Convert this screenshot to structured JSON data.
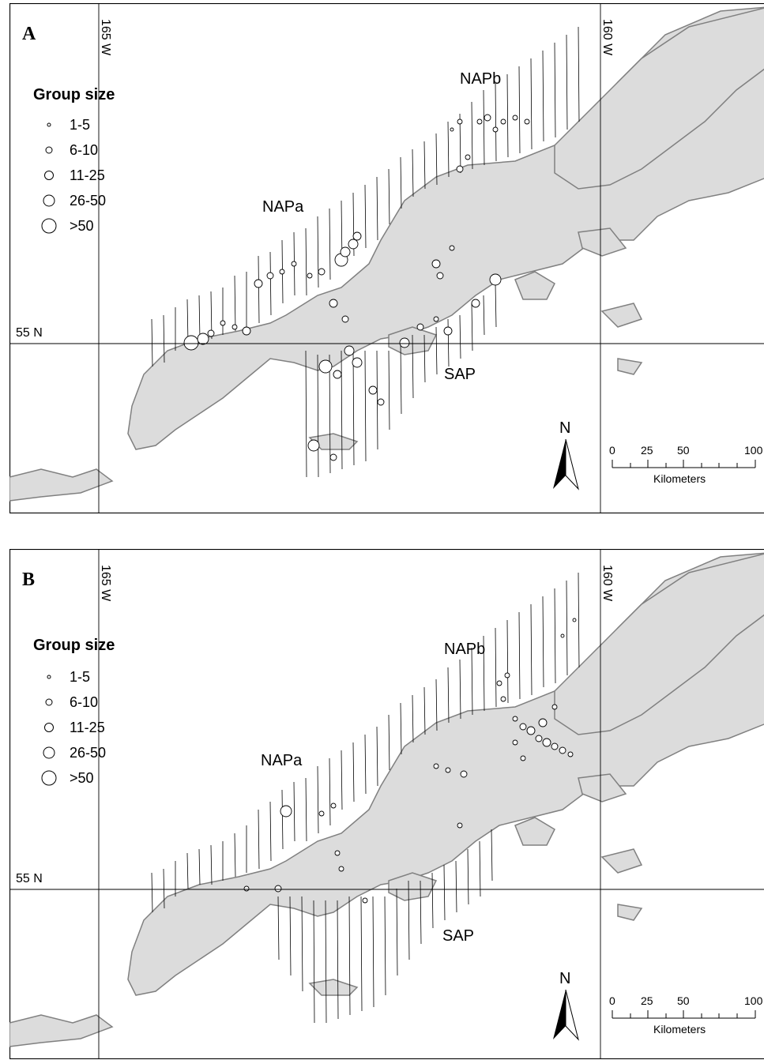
{
  "figure": {
    "panels": [
      {
        "id": "A",
        "letter": "A",
        "legend": {
          "title": "Group size",
          "classes": [
            "1-5",
            "6-10",
            "11-25",
            "26-50",
            ">50"
          ]
        },
        "graticule": {
          "lon_west": "165 W",
          "lon_east": "160 W",
          "lat": "55 N"
        },
        "regions": [
          "NAPa",
          "NAPb",
          "SAP"
        ],
        "north_arrow": "N",
        "scale_bar": {
          "ticks": [
            "0",
            "25",
            "50",
            "100"
          ],
          "unit": "Kilometers"
        }
      },
      {
        "id": "B",
        "letter": "B",
        "legend": {
          "title": "Group size",
          "classes": [
            "1-5",
            "6-10",
            "11-25",
            "26-50",
            ">50"
          ]
        },
        "graticule": {
          "lon_west": "165 W",
          "lon_east": "160 W",
          "lat": "55 N"
        },
        "regions": [
          "NAPa",
          "NAPb",
          "SAP"
        ],
        "north_arrow": "N",
        "scale_bar": {
          "ticks": [
            "0",
            "25",
            "50",
            "100"
          ],
          "unit": "Kilometers"
        }
      }
    ]
  },
  "colors": {
    "land": "#dcdcdc",
    "coast": "#808080",
    "frame": "#000000",
    "transect": "#000000"
  }
}
